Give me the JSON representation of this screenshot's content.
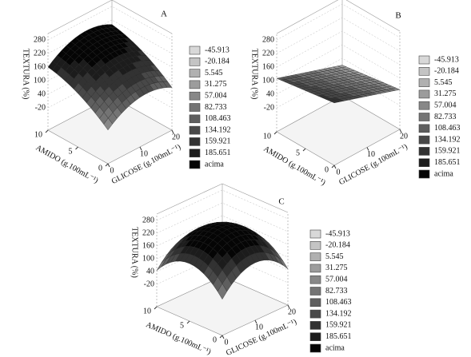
{
  "chart_data": [
    {
      "type": "surface",
      "title": "A",
      "zlabel": "TEXTURA (%)",
      "ylabel": "AMIDO (g.100mL⁻¹)",
      "xlabel": "GLICOSE (g.100mL⁻¹)",
      "xlim": [
        0,
        20
      ],
      "xticks": [
        0,
        10,
        20
      ],
      "ylim": [
        0,
        10
      ],
      "yticks": [
        0,
        5,
        10
      ],
      "zlim": [
        -20,
        280
      ],
      "zticks": [
        -20,
        40,
        100,
        160,
        220,
        280
      ],
      "legend": {
        "levels": [
          -45.913,
          -20.184,
          5.545,
          31.275,
          57.004,
          82.733,
          108.463,
          134.192,
          159.921,
          185.651
        ],
        "above_label": "acima",
        "colors": [
          "#d8d8d8",
          "#c4c4c4",
          "#b0b0b0",
          "#9c9c9c",
          "#888888",
          "#747474",
          "#5e5e5e",
          "#484848",
          "#323232",
          "#1c1c1c",
          "#050505"
        ]
      }
    },
    {
      "type": "surface",
      "title": "B",
      "zlabel": "TEXTURA (%)",
      "ylabel": "AMIDO (g.100mL⁻¹)",
      "xlabel": "GLICOSE (g.100mL⁻¹)",
      "xlim": [
        0,
        20
      ],
      "xticks": [
        0,
        10,
        20
      ],
      "ylim": [
        0,
        10
      ],
      "yticks": [
        0,
        5,
        10
      ],
      "zlim": [
        -20,
        280
      ],
      "zticks": [
        -20,
        40,
        100,
        160,
        220,
        280
      ],
      "legend": {
        "levels": [
          -45.913,
          -20.184,
          5.545,
          31.275,
          57.004,
          82.733,
          108.463,
          134.192,
          159.921,
          185.651
        ],
        "above_label": "acima",
        "colors": [
          "#d8d8d8",
          "#c4c4c4",
          "#b0b0b0",
          "#9c9c9c",
          "#888888",
          "#747474",
          "#5e5e5e",
          "#484848",
          "#323232",
          "#1c1c1c",
          "#050505"
        ]
      }
    },
    {
      "type": "surface",
      "title": "C",
      "zlabel": "TEXTURA (%)",
      "ylabel": "AMIDO (g.100mL⁻¹)",
      "xlabel": "GLICOSE (g.100mL⁻¹)",
      "xlim": [
        0,
        20
      ],
      "xticks": [
        0,
        10,
        20
      ],
      "ylim": [
        0,
        10
      ],
      "yticks": [
        0,
        5,
        10
      ],
      "zlim": [
        -20,
        280
      ],
      "zticks": [
        -20,
        40,
        100,
        160,
        220,
        280
      ],
      "legend": {
        "levels": [
          -45.913,
          -20.184,
          5.545,
          31.275,
          57.004,
          82.733,
          108.463,
          134.192,
          159.921,
          185.651
        ],
        "above_label": "acima",
        "colors": [
          "#d8d8d8",
          "#c4c4c4",
          "#b0b0b0",
          "#9c9c9c",
          "#888888",
          "#747474",
          "#5e5e5e",
          "#484848",
          "#323232",
          "#1c1c1c",
          "#050505"
        ]
      }
    }
  ]
}
